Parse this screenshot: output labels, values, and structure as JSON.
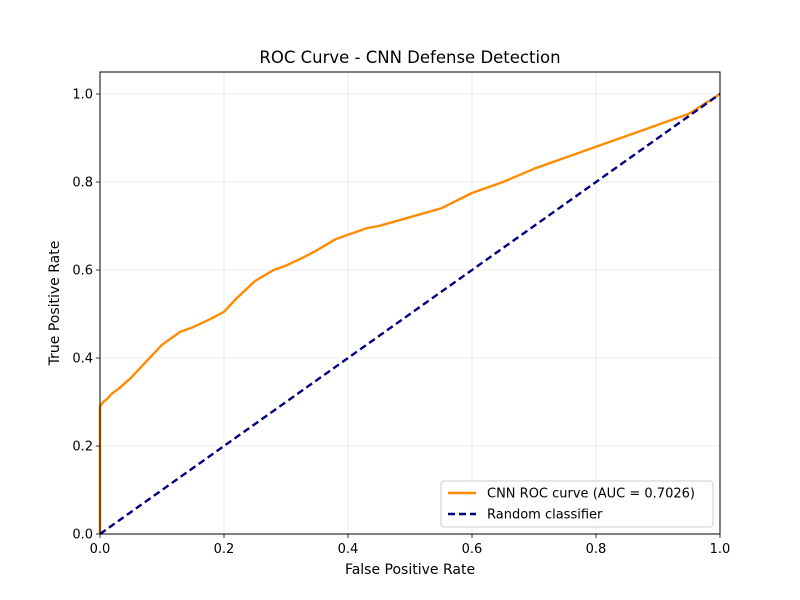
{
  "chart_data": {
    "type": "line",
    "title": "ROC Curve - CNN Defense Detection",
    "xlabel": "False Positive Rate",
    "ylabel": "True Positive Rate",
    "xlim": [
      0.0,
      1.0
    ],
    "ylim": [
      0.0,
      1.05
    ],
    "x_ticks": [
      "0.0",
      "0.2",
      "0.4",
      "0.6",
      "0.8",
      "1.0"
    ],
    "y_ticks": [
      "0.0",
      "0.2",
      "0.4",
      "0.6",
      "0.8",
      "1.0"
    ],
    "grid": true,
    "legend_position": "lower-right",
    "series": [
      {
        "name": "CNN ROC curve (AUC = 0.7026)",
        "color": "#ff8c00",
        "style": "solid",
        "x": [
          0.0,
          0.0,
          0.0,
          0.005,
          0.01,
          0.02,
          0.03,
          0.05,
          0.07,
          0.1,
          0.13,
          0.15,
          0.18,
          0.2,
          0.22,
          0.25,
          0.28,
          0.3,
          0.33,
          0.35,
          0.38,
          0.4,
          0.43,
          0.45,
          0.5,
          0.55,
          0.6,
          0.65,
          0.7,
          0.75,
          0.8,
          0.85,
          0.9,
          0.95,
          1.0
        ],
        "y": [
          0.0,
          0.2,
          0.29,
          0.3,
          0.305,
          0.32,
          0.33,
          0.355,
          0.385,
          0.43,
          0.46,
          0.47,
          0.49,
          0.505,
          0.535,
          0.575,
          0.6,
          0.61,
          0.63,
          0.645,
          0.67,
          0.68,
          0.695,
          0.7,
          0.72,
          0.74,
          0.775,
          0.8,
          0.83,
          0.855,
          0.88,
          0.905,
          0.93,
          0.955,
          1.0
        ]
      },
      {
        "name": "Random classifier",
        "color": "#000080",
        "style": "dashed",
        "x": [
          0.0,
          1.0
        ],
        "y": [
          0.0,
          1.0
        ]
      }
    ]
  }
}
